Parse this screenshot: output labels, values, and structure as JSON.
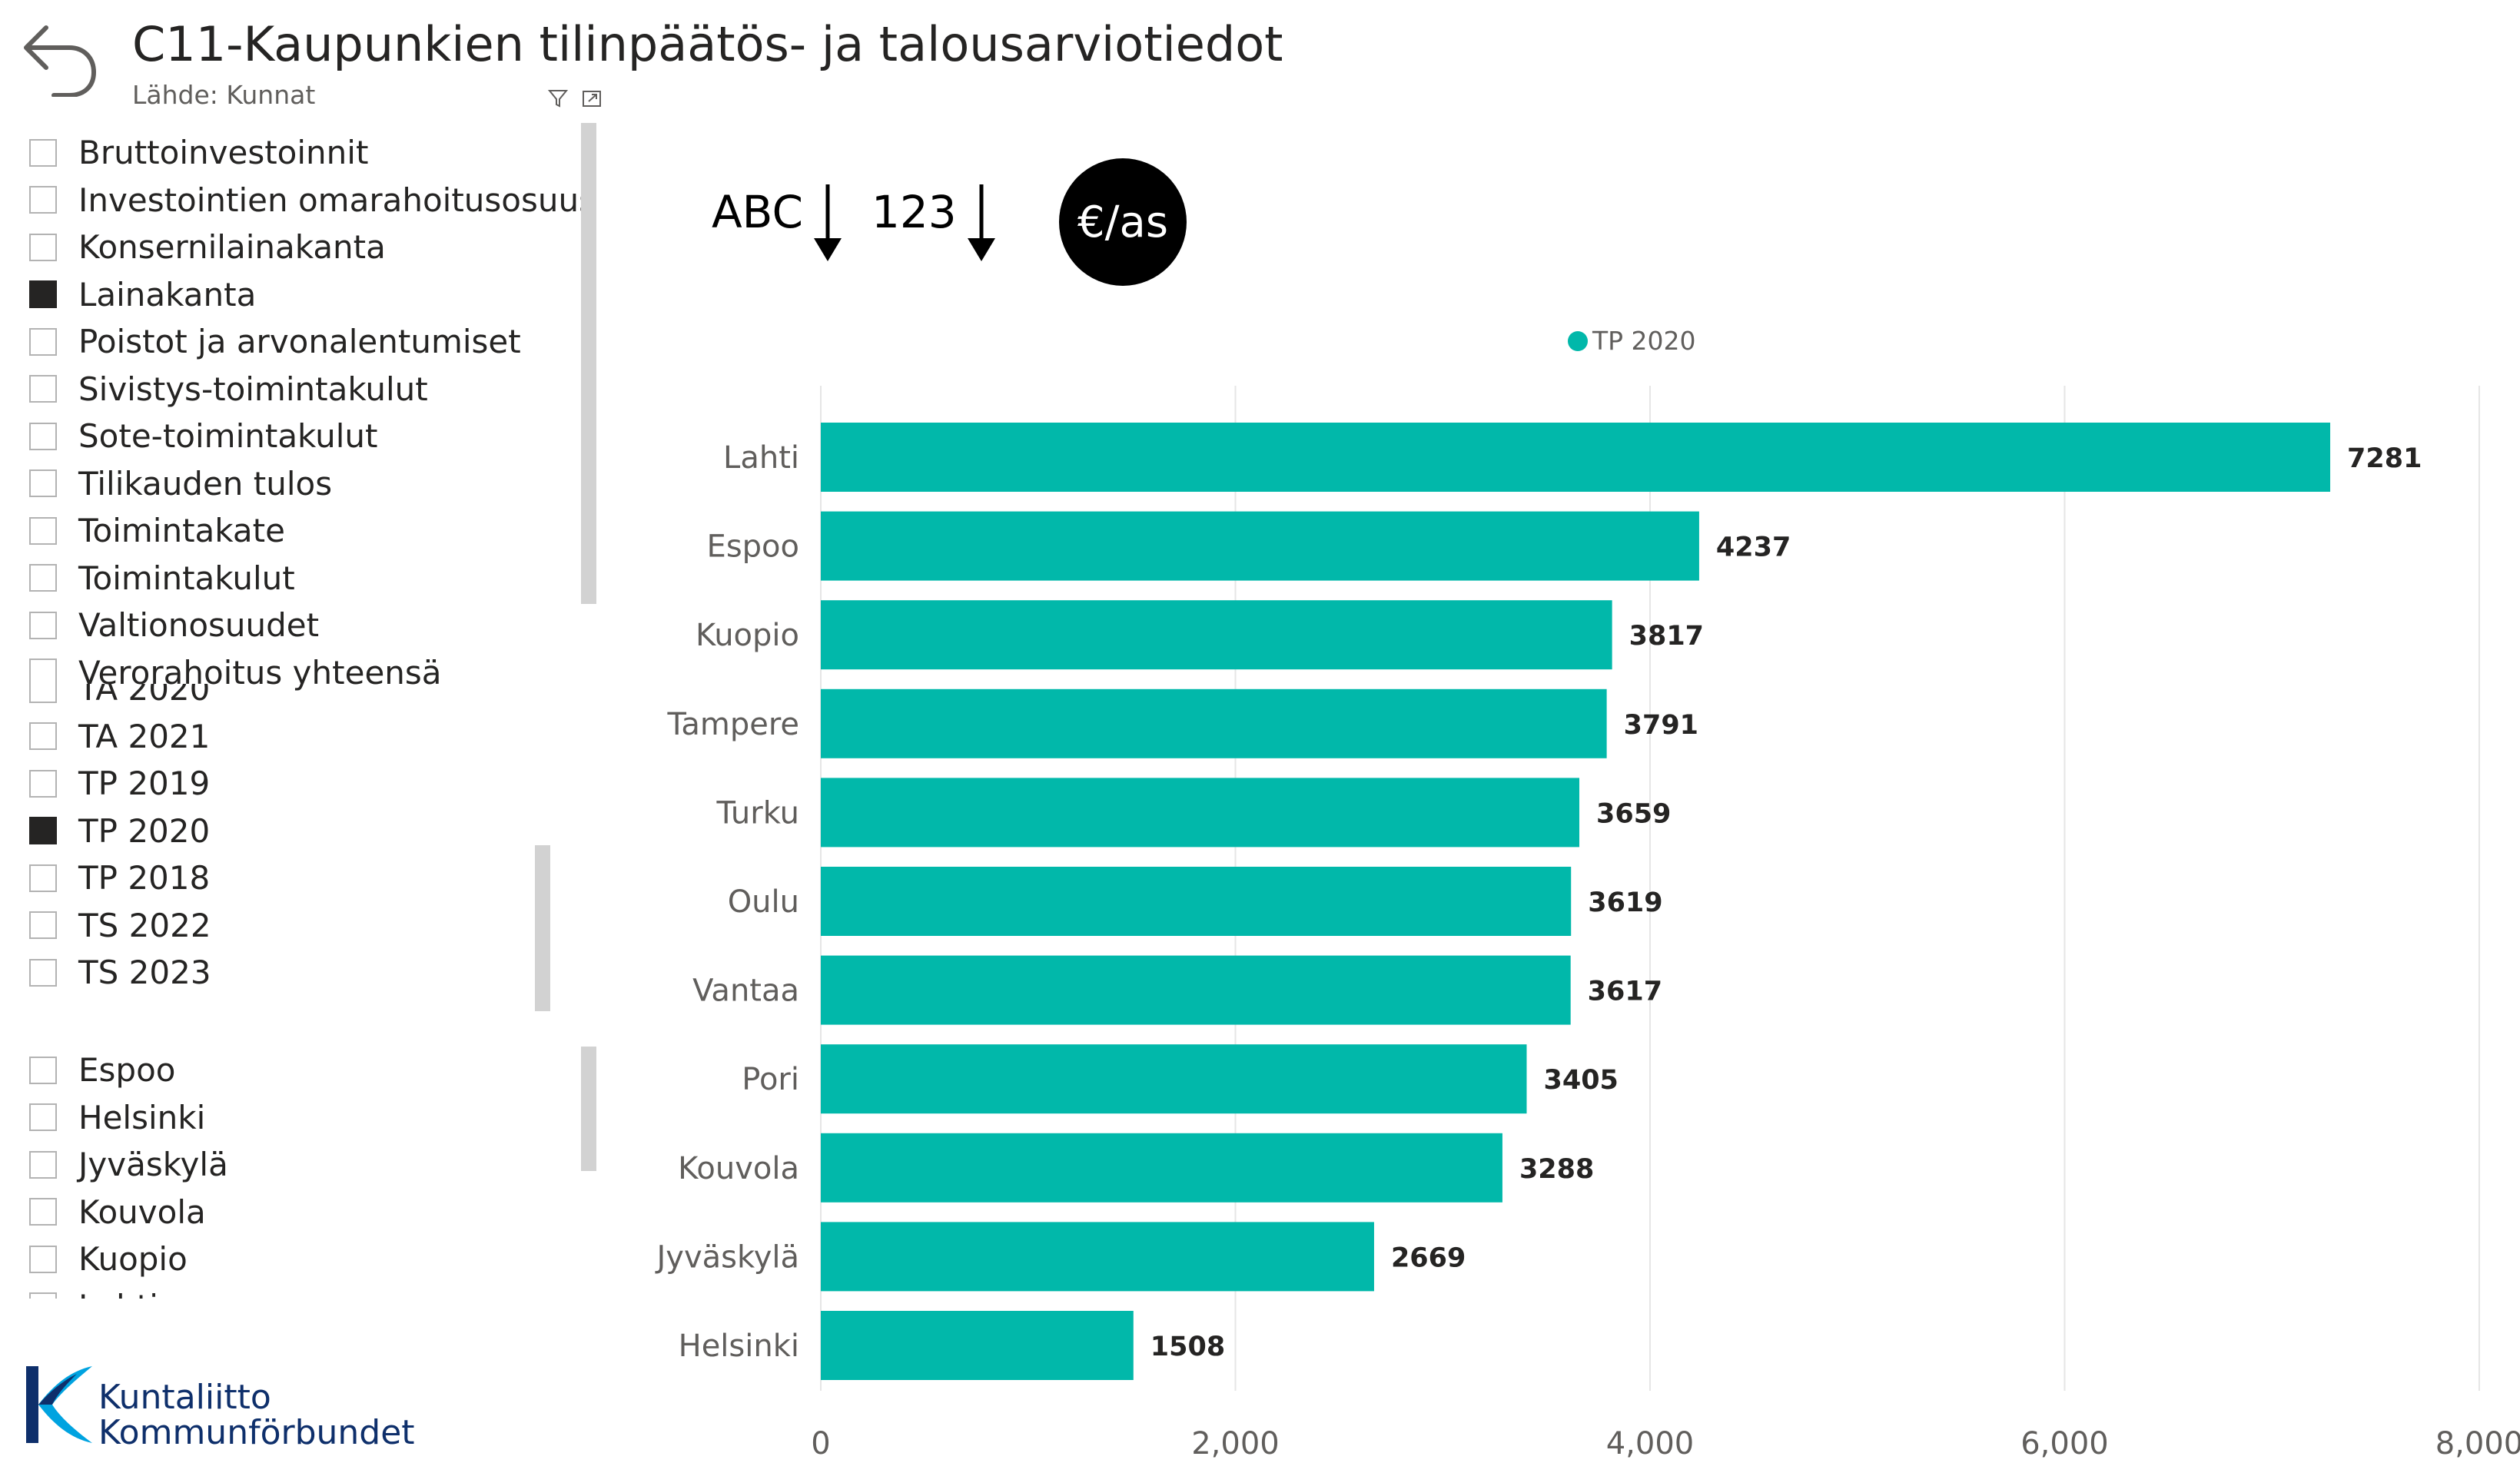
{
  "header": {
    "title": "C11-Kaupunkien tilinpäätös- ja talousarviotiedot",
    "subtitle": "Lähde: Kunnat",
    "back_icon": "back-arrow-icon",
    "filter_icon": "filter-icon",
    "focus_icon": "focus-mode-icon"
  },
  "slicers": {
    "measures": [
      {
        "label": "Bruttoinvestoinnit",
        "checked": false
      },
      {
        "label": "Investointien omarahoitusosuus",
        "checked": false
      },
      {
        "label": "Konsernilainakanta",
        "checked": false
      },
      {
        "label": "Lainakanta",
        "checked": true
      },
      {
        "label": "Poistot ja arvonalentumiset",
        "checked": false
      },
      {
        "label": "Sivistys-toimintakulut",
        "checked": false
      },
      {
        "label": "Sote-toimintakulut",
        "checked": false
      },
      {
        "label": "Tilikauden tulos",
        "checked": false
      },
      {
        "label": "Toimintakate",
        "checked": false
      },
      {
        "label": "Toimintakulut",
        "checked": false
      },
      {
        "label": "Valtionosuudet",
        "checked": false
      },
      {
        "label": "Verorahoitus yhteensä",
        "checked": false
      }
    ],
    "years": [
      {
        "label": "TA 2020",
        "checked": false
      },
      {
        "label": "TA 2021",
        "checked": false
      },
      {
        "label": "TP 2019",
        "checked": false
      },
      {
        "label": "TP 2020",
        "checked": true
      },
      {
        "label": "TP 2018",
        "checked": false
      },
      {
        "label": "TS 2022",
        "checked": false
      },
      {
        "label": "TS 2023",
        "checked": false
      }
    ],
    "cities": [
      {
        "label": "Espoo",
        "checked": false
      },
      {
        "label": "Helsinki",
        "checked": false
      },
      {
        "label": "Jyväskylä",
        "checked": false
      },
      {
        "label": "Kouvola",
        "checked": false
      },
      {
        "label": "Kuopio",
        "checked": false
      },
      {
        "label": "Lahti",
        "checked": false
      }
    ]
  },
  "controls": {
    "sort_abc_label": "ABC",
    "sort_123_label": "123",
    "unit_label": "€/as",
    "sort_arrow_icon": "arrow-down-icon"
  },
  "logo": {
    "line1": "Kuntaliitto",
    "line2": "Kommunförbundet"
  },
  "colors": {
    "bar": "#01B8AA",
    "accent_dark": "#252423",
    "logo_blue": "#0E2F6B",
    "logo_light_blue": "#00A3E0"
  },
  "chart_data": {
    "type": "bar",
    "orientation": "horizontal",
    "categories": [
      "Lahti",
      "Espoo",
      "Kuopio",
      "Tampere",
      "Turku",
      "Oulu",
      "Vantaa",
      "Pori",
      "Kouvola",
      "Jyväskylä",
      "Helsinki"
    ],
    "series": [
      {
        "name": "TP 2020",
        "values": [
          7281,
          4237,
          3817,
          3791,
          3659,
          3619,
          3617,
          3405,
          3288,
          2669,
          1508
        ]
      }
    ],
    "xlim": [
      0,
      8000
    ],
    "xticks": [
      0,
      2000,
      4000,
      6000,
      8000
    ],
    "xtick_labels": [
      "0",
      "2,000",
      "4,000",
      "6,000",
      "8,000"
    ],
    "legend_position": "top",
    "grid": true,
    "data_labels": true
  }
}
